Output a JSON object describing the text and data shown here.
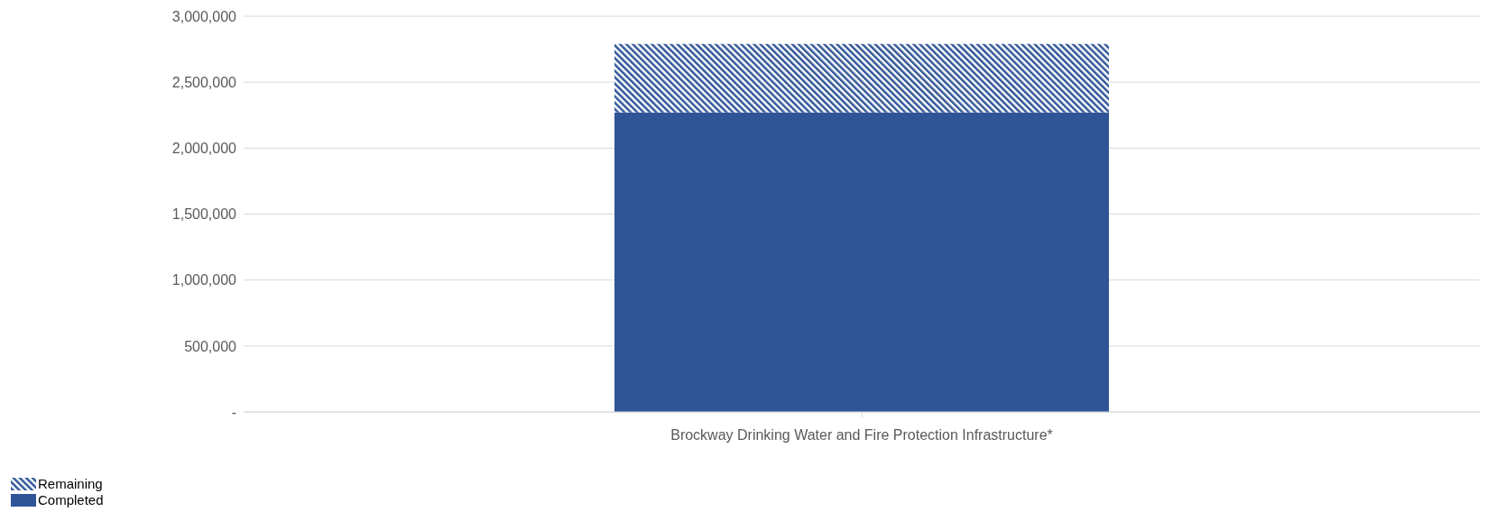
{
  "chart_data": {
    "type": "bar",
    "stacked": true,
    "categories": [
      "Brockway Drinking Water and Fire Protection Infrastructure*"
    ],
    "series": [
      {
        "name": "Completed",
        "color": "#2f5597",
        "values": [
          2270000
        ]
      },
      {
        "name": "Remaining",
        "color": "#2f5597",
        "values": [
          520000
        ]
      }
    ],
    "ylim": [
      0,
      3000000
    ],
    "yticks": [
      {
        "value": 0,
        "label": "-"
      },
      {
        "value": 500000,
        "label": "500,000"
      },
      {
        "value": 1000000,
        "label": "1,000,000"
      },
      {
        "value": 1500000,
        "label": "1,500,000"
      },
      {
        "value": 2000000,
        "label": "2,000,000"
      },
      {
        "value": 2500000,
        "label": "2,500,000"
      },
      {
        "value": 3000000,
        "label": "3,000,000"
      }
    ],
    "grid": "y",
    "legend": "bottom left"
  }
}
